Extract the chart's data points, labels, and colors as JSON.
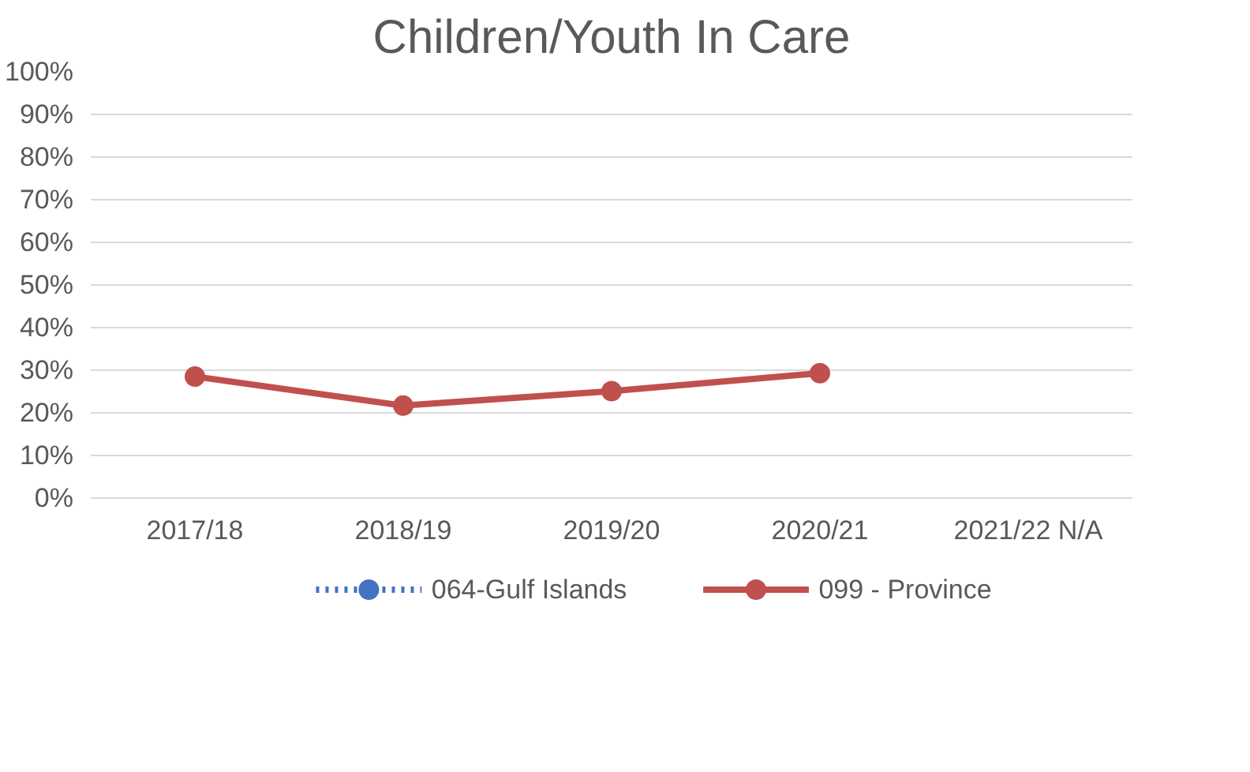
{
  "chart_data": {
    "type": "line",
    "title": "Children/Youth In Care",
    "categories": [
      "2017/18",
      "2018/19",
      "2019/20",
      "2020/21",
      "2021/22 N/A"
    ],
    "series": [
      {
        "name": "064-Gulf Islands",
        "color": "#4472c4",
        "values": [
          null,
          null,
          null,
          null,
          null
        ],
        "line_style": "dotted",
        "marker": "circle"
      },
      {
        "name": "099 - Province",
        "color": "#c0504d",
        "values": [
          28.5,
          21.7,
          25.1,
          29.3,
          null
        ],
        "line_style": "solid",
        "marker": "circle"
      }
    ],
    "ylim": [
      0,
      100
    ],
    "yticks": [
      {
        "value": 0,
        "label": "0%"
      },
      {
        "value": 10,
        "label": "10%"
      },
      {
        "value": 20,
        "label": "20%"
      },
      {
        "value": 30,
        "label": "30%"
      },
      {
        "value": 40,
        "label": "40%"
      },
      {
        "value": 50,
        "label": "50%"
      },
      {
        "value": 60,
        "label": "60%"
      },
      {
        "value": 70,
        "label": "70%"
      },
      {
        "value": 80,
        "label": "80%"
      },
      {
        "value": 90,
        "label": "90%"
      },
      {
        "value": 100,
        "label": "100%"
      }
    ],
    "grid": "y",
    "legend": "bottom"
  }
}
